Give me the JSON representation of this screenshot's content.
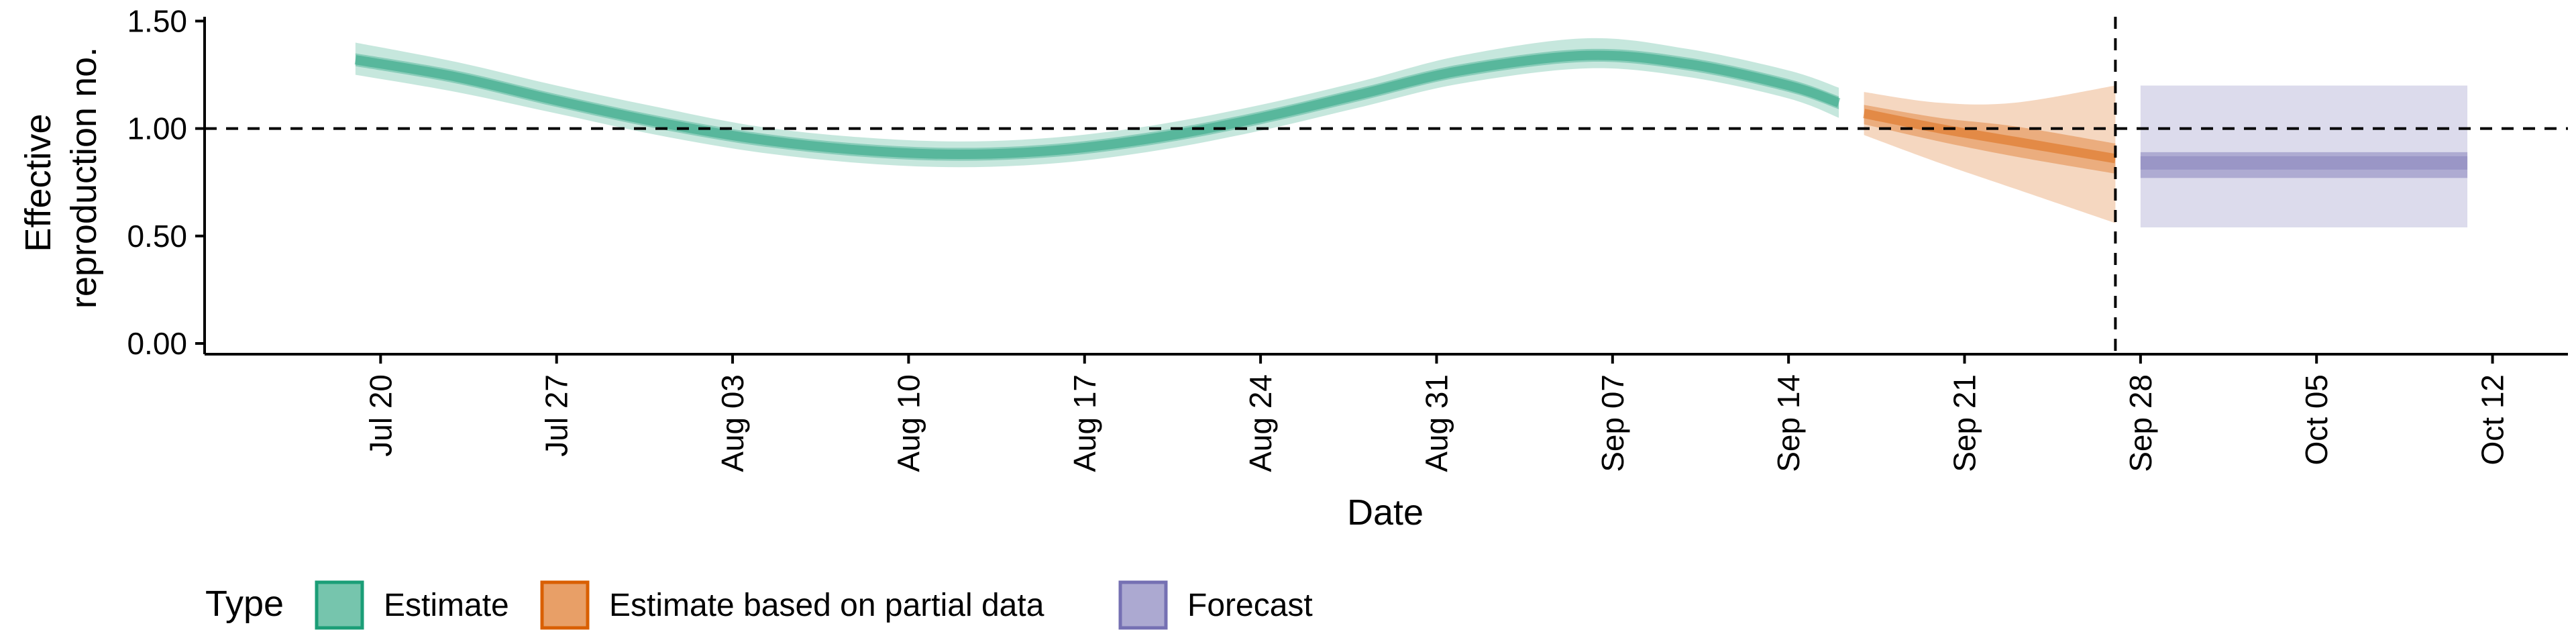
{
  "chart_data": {
    "type": "area",
    "xlabel": "Date",
    "ylabel_lines": [
      "Effective",
      "reproduction no."
    ],
    "y_ticks": [
      "0.00",
      "0.50",
      "1.00",
      "1.50"
    ],
    "y_tick_values": [
      0,
      0.5,
      1.0,
      1.5
    ],
    "ylim": [
      -0.05,
      1.52
    ],
    "x_ticks": [
      "Jul 20",
      "Jul 27",
      "Aug 03",
      "Aug 10",
      "Aug 17",
      "Aug 24",
      "Aug 31",
      "Sep 07",
      "Sep 14",
      "Sep 21",
      "Sep 28",
      "Oct 05",
      "Oct 12"
    ],
    "x_tick_dates": [
      "2020-07-20",
      "2020-07-27",
      "2020-08-03",
      "2020-08-10",
      "2020-08-17",
      "2020-08-24",
      "2020-08-31",
      "2020-09-07",
      "2020-09-14",
      "2020-09-21",
      "2020-09-28",
      "2020-10-05",
      "2020-10-12"
    ],
    "xlim": [
      "2020-07-13",
      "2020-10-15"
    ],
    "reference_line_y": 1.0,
    "vertical_line_date": "2020-09-27",
    "colors": {
      "Estimate": "#1b9e77",
      "Estimate based on partial data": "#d95f02",
      "Forecast": "#7570b3"
    },
    "series": [
      {
        "name": "Estimate",
        "points": [
          {
            "x": "2020-07-19",
            "median": 1.32,
            "lo50": 1.29,
            "hi50": 1.35,
            "lo90": 1.25,
            "hi90": 1.4
          },
          {
            "x": "2020-07-23",
            "median": 1.24,
            "lo50": 1.21,
            "hi50": 1.27,
            "lo90": 1.17,
            "hi90": 1.31
          },
          {
            "x": "2020-07-27",
            "median": 1.13,
            "lo50": 1.1,
            "hi50": 1.16,
            "lo90": 1.07,
            "hi90": 1.2
          },
          {
            "x": "2020-07-31",
            "median": 1.03,
            "lo50": 1.0,
            "hi50": 1.06,
            "lo90": 0.97,
            "hi90": 1.1
          },
          {
            "x": "2020-08-04",
            "median": 0.95,
            "lo50": 0.92,
            "hi50": 0.98,
            "lo90": 0.89,
            "hi90": 1.01
          },
          {
            "x": "2020-08-08",
            "median": 0.9,
            "lo50": 0.87,
            "hi50": 0.93,
            "lo90": 0.84,
            "hi90": 0.96
          },
          {
            "x": "2020-08-12",
            "median": 0.88,
            "lo50": 0.85,
            "hi50": 0.91,
            "lo90": 0.82,
            "hi90": 0.94
          },
          {
            "x": "2020-08-16",
            "median": 0.9,
            "lo50": 0.87,
            "hi50": 0.93,
            "lo90": 0.84,
            "hi90": 0.96
          },
          {
            "x": "2020-08-20",
            "median": 0.96,
            "lo50": 0.93,
            "hi50": 0.99,
            "lo90": 0.9,
            "hi90": 1.02
          },
          {
            "x": "2020-08-24",
            "median": 1.05,
            "lo50": 1.02,
            "hi50": 1.08,
            "lo90": 0.99,
            "hi90": 1.11
          },
          {
            "x": "2020-08-28",
            "median": 1.16,
            "lo50": 1.13,
            "hi50": 1.19,
            "lo90": 1.1,
            "hi90": 1.22
          },
          {
            "x": "2020-09-01",
            "median": 1.27,
            "lo50": 1.24,
            "hi50": 1.3,
            "lo90": 1.21,
            "hi90": 1.34
          },
          {
            "x": "2020-09-06",
            "median": 1.34,
            "lo50": 1.31,
            "hi50": 1.37,
            "lo90": 1.28,
            "hi90": 1.42
          },
          {
            "x": "2020-09-10",
            "median": 1.3,
            "lo50": 1.27,
            "hi50": 1.33,
            "lo90": 1.24,
            "hi90": 1.37
          },
          {
            "x": "2020-09-14",
            "median": 1.2,
            "lo50": 1.17,
            "hi50": 1.23,
            "lo90": 1.14,
            "hi90": 1.27
          },
          {
            "x": "2020-09-16",
            "median": 1.12,
            "lo50": 1.09,
            "hi50": 1.15,
            "lo90": 1.05,
            "hi90": 1.19
          }
        ]
      },
      {
        "name": "Estimate based on partial data",
        "points": [
          {
            "x": "2020-09-17",
            "median": 1.07,
            "lo50": 1.02,
            "hi50": 1.11,
            "lo90": 0.97,
            "hi90": 1.17
          },
          {
            "x": "2020-09-20",
            "median": 1.0,
            "lo50": 0.94,
            "hi50": 1.05,
            "lo90": 0.84,
            "hi90": 1.12
          },
          {
            "x": "2020-09-23",
            "median": 0.94,
            "lo50": 0.87,
            "hi50": 1.01,
            "lo90": 0.72,
            "hi90": 1.12
          },
          {
            "x": "2020-09-27",
            "median": 0.86,
            "lo50": 0.79,
            "hi50": 0.93,
            "lo90": 0.56,
            "hi90": 1.2
          }
        ]
      },
      {
        "name": "Forecast",
        "points": [
          {
            "x": "2020-09-28",
            "median": 0.84,
            "lo50": 0.77,
            "hi50": 0.89,
            "lo90": 0.54,
            "hi90": 1.2
          },
          {
            "x": "2020-10-11",
            "median": 0.84,
            "lo50": 0.77,
            "hi50": 0.89,
            "lo90": 0.54,
            "hi90": 1.2
          }
        ]
      }
    ],
    "legend": {
      "title": "Type",
      "placement": "bottom-left",
      "items": [
        "Estimate",
        "Estimate based on partial data",
        "Forecast"
      ]
    }
  }
}
